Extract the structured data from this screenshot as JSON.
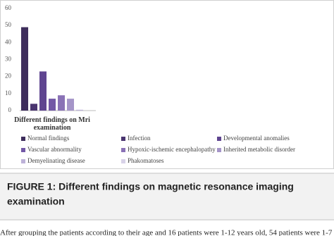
{
  "chart_data": {
    "type": "bar",
    "categories": [
      "Different findings on Mri examination"
    ],
    "series": [
      {
        "name": "Normal findings",
        "color": "#3e2d5c",
        "values": [
          49
        ]
      },
      {
        "name": "Infection",
        "color": "#4a3570",
        "values": [
          4
        ]
      },
      {
        "name": "Developmental anomalies",
        "color": "#5f4590",
        "values": [
          23
        ]
      },
      {
        "name": "Vascular abnormality",
        "color": "#7358a6",
        "values": [
          7
        ]
      },
      {
        "name": "Hypoxic-ischemic encephalopathy",
        "color": "#8a72b6",
        "values": [
          9
        ]
      },
      {
        "name": "Inherited metabolic disorder",
        "color": "#a595c8",
        "values": [
          7
        ]
      },
      {
        "name": "Demyelinating disease",
        "color": "#bdb2d8",
        "values": [
          0.5
        ]
      },
      {
        "name": "Phakomatoses",
        "color": "#d8d2e8",
        "values": [
          0
        ]
      }
    ],
    "ylim": [
      0,
      60
    ],
    "yticks": [
      0,
      10,
      20,
      30,
      40,
      50,
      60
    ],
    "grid": false
  },
  "caption": {
    "title": "FIGURE 1: Different findings on magnetic resonance imaging",
    "title_line2": "examination"
  },
  "body_text": "After grouping the patients according to their age and 16 patients were 1-12 years old, 54 patients were 1-7"
}
